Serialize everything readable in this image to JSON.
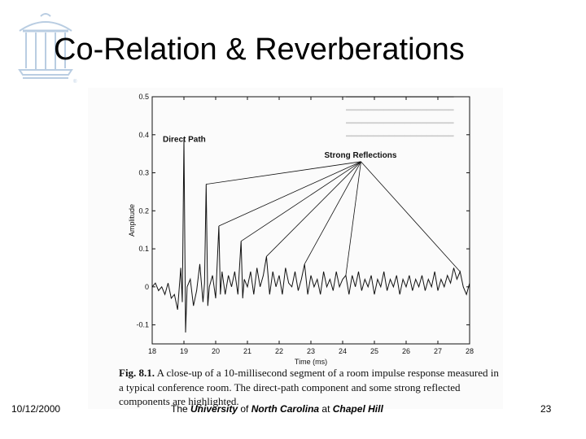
{
  "slide": {
    "title": "Co-Relation & Reverberations",
    "footer_date": "10/12/2000",
    "footer": {
      "pre": "The ",
      "university": "University",
      "of": " of ",
      "nc": "North Carolina",
      "at": " at ",
      "ch": "Chapel Hill"
    },
    "page_number": "23"
  },
  "figure": {
    "caption_label": "Fig. 8.1.",
    "caption_text": " A close-up of a 10-millisecond segment of a room impulse response measured in a typical conference room. The direct-path component and some strong reflected components are highlighted."
  },
  "colors": {
    "ink": "#111111",
    "background_text": "#cfcfcf",
    "logo": "#b9cde2"
  },
  "chart_data": {
    "type": "line",
    "xlabel": "Time (ms)",
    "ylabel": "Amplitude",
    "xlim": [
      18,
      28
    ],
    "ylim": [
      -0.15,
      0.5
    ],
    "xticks": [
      18,
      19,
      20,
      21,
      22,
      23,
      24,
      25,
      26,
      27,
      28
    ],
    "yticks": [
      -0.1,
      0,
      0.1,
      0.2,
      0.3,
      0.4,
      0.5
    ],
    "ytick_labels": [
      "-0.1",
      "0",
      "0.1",
      "0.2",
      "0.3",
      "0.4",
      "0.5"
    ],
    "grid": false,
    "annotations": [
      {
        "text": "Direct Path",
        "at": [
          19.0,
          0.39
        ]
      },
      {
        "text": "Strong Reflections",
        "targets": [
          [
            19.7,
            0.27
          ],
          [
            20.1,
            0.16
          ],
          [
            20.8,
            0.12
          ],
          [
            21.6,
            0.08
          ],
          [
            22.8,
            0.06
          ],
          [
            24.1,
            0.03
          ],
          [
            27.7,
            0.04
          ]
        ]
      }
    ],
    "series": [
      {
        "x": [
          18.0,
          18.1,
          18.2,
          18.3,
          18.4,
          18.5,
          18.6,
          18.7,
          18.8,
          18.9,
          18.95,
          19.0,
          19.05,
          19.1,
          19.2,
          19.3,
          19.4,
          19.5,
          19.6,
          19.65,
          19.7,
          19.75,
          19.8,
          19.9,
          20.0,
          20.1,
          20.15,
          20.2,
          20.3,
          20.4,
          20.5,
          20.6,
          20.7,
          20.8,
          20.85,
          20.9,
          21.0,
          21.1,
          21.2,
          21.3,
          21.4,
          21.5,
          21.6,
          21.7,
          21.8,
          21.9,
          22.0,
          22.1,
          22.2,
          22.3,
          22.4,
          22.5,
          22.6,
          22.7,
          22.8,
          22.9,
          23.0,
          23.1,
          23.2,
          23.3,
          23.4,
          23.5,
          23.6,
          23.7,
          23.8,
          23.9,
          24.0,
          24.1,
          24.2,
          24.3,
          24.4,
          24.5,
          24.6,
          24.7,
          24.8,
          24.9,
          25.0,
          25.1,
          25.2,
          25.3,
          25.4,
          25.5,
          25.6,
          25.7,
          25.8,
          25.9,
          26.0,
          26.1,
          26.2,
          26.3,
          26.4,
          26.5,
          26.6,
          26.7,
          26.8,
          26.9,
          27.0,
          27.1,
          27.2,
          27.3,
          27.4,
          27.5,
          27.6,
          27.7,
          27.8,
          27.9,
          28.0
        ],
        "y": [
          0.0,
          0.01,
          -0.01,
          0.0,
          -0.02,
          0.01,
          -0.03,
          -0.02,
          -0.06,
          0.05,
          -0.04,
          0.39,
          -0.12,
          0.0,
          0.02,
          -0.05,
          -0.01,
          0.06,
          -0.04,
          0.01,
          0.27,
          -0.05,
          0.0,
          0.03,
          -0.03,
          0.16,
          -0.02,
          0.04,
          -0.02,
          0.03,
          0.0,
          0.04,
          -0.02,
          0.12,
          -0.03,
          0.02,
          0.0,
          0.04,
          -0.02,
          0.05,
          0.0,
          0.03,
          0.08,
          -0.02,
          0.04,
          0.0,
          0.03,
          -0.02,
          0.05,
          0.01,
          0.0,
          0.04,
          -0.01,
          0.02,
          0.06,
          -0.02,
          0.03,
          0.0,
          0.02,
          -0.02,
          0.04,
          0.0,
          0.02,
          -0.01,
          0.04,
          0.0,
          0.02,
          0.03,
          -0.02,
          0.03,
          0.0,
          0.04,
          -0.01,
          0.02,
          0.0,
          0.03,
          -0.02,
          0.02,
          0.0,
          0.04,
          -0.01,
          0.02,
          0.0,
          0.03,
          -0.02,
          0.02,
          0.0,
          0.03,
          -0.01,
          0.02,
          0.0,
          0.03,
          -0.01,
          0.02,
          0.0,
          0.04,
          -0.01,
          0.02,
          0.0,
          0.03,
          0.01,
          0.05,
          0.02,
          0.04,
          0.0,
          -0.02,
          0.01
        ]
      }
    ]
  }
}
